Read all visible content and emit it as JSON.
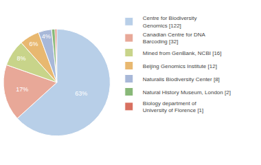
{
  "chart_data": {
    "type": "pie",
    "categories": [
      "Centre for Biodiversity\nGenomics [122]",
      "Canadian Centre for DNA\nBarcoding [32]",
      "Mined from GenBank, NCBI [16]",
      "Beijing Genomics Institute [12]",
      "Naturalis Biodiversity Center [8]",
      "Natural History Museum, London [2]",
      "Biology department of\nUniversity of Florence [1]"
    ],
    "values": [
      63,
      17,
      8,
      6,
      4,
      1.04,
      0.52
    ],
    "value_labels": [
      "63%",
      "17%",
      "8%",
      "6%",
      "4%",
      null,
      null
    ],
    "data_labels": true,
    "colors": [
      "#b8cfe8",
      "#e8a898",
      "#c8d48a",
      "#e8b870",
      "#a8b8d8",
      "#88b878",
      "#d87060"
    ],
    "legend": "right"
  }
}
